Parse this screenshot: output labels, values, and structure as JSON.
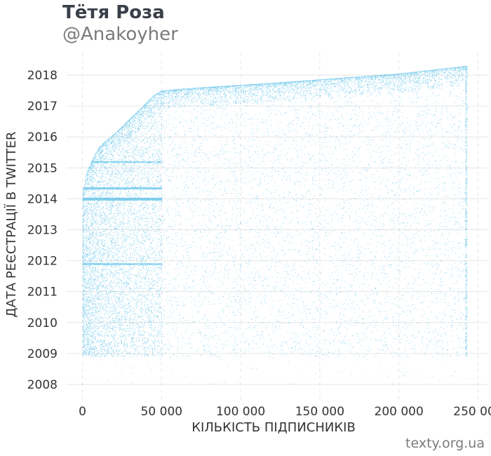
{
  "header": {
    "title": "Тётя Роза",
    "subtitle": "@Anakoyher"
  },
  "credit": "texty.org.ua",
  "colors": {
    "points": "#1aa7e0",
    "grid": "#e6e6e6",
    "axis_text": "#333333"
  },
  "chart_data": {
    "type": "scatter",
    "xlabel": "КІЛЬКІСТЬ ПІДПИСНИКІВ",
    "ylabel": "ДАТА РЕЄСТРАЦІЇ В TWITTER",
    "xlim": [
      -10000,
      256000
    ],
    "ylim": [
      2007.5,
      2018.5
    ],
    "x_ticks": [
      0,
      50000,
      100000,
      150000,
      200000,
      250000
    ],
    "x_tick_labels": [
      "0",
      "50 000",
      "100 000",
      "150 000",
      "200 000",
      "250 000"
    ],
    "y_ticks": [
      2008,
      2009,
      2010,
      2011,
      2012,
      2013,
      2014,
      2015,
      2016,
      2017,
      2018
    ],
    "y_tick_labels": [
      "2008",
      "2009",
      "2010",
      "2011",
      "2012",
      "2013",
      "2014",
      "2015",
      "2016",
      "2017",
      "2018"
    ],
    "grid": true,
    "frontier": {
      "x": [
        0,
        1000,
        3000,
        6000,
        10000,
        15000,
        20000,
        25000,
        30000,
        35000,
        40000,
        45000,
        50000,
        60000,
        80000,
        120000,
        160000,
        200000,
        243000
      ],
      "y": [
        2014.2,
        2014.5,
        2014.9,
        2015.25,
        2015.65,
        2015.9,
        2016.1,
        2016.35,
        2016.6,
        2016.85,
        2017.1,
        2017.35,
        2017.5,
        2017.55,
        2017.62,
        2017.75,
        2017.9,
        2018.05,
        2018.3
      ]
    },
    "x_max": 243000,
    "series": [
      {
        "x_range": [
          0,
          243000
        ],
        "y_range": [
          2008.9,
          2018.3
        ],
        "density": "sparse"
      },
      {
        "x_range": [
          0,
          50000
        ],
        "y_range": [
          2008.9,
          2017.5
        ],
        "density": "dense"
      }
    ]
  }
}
